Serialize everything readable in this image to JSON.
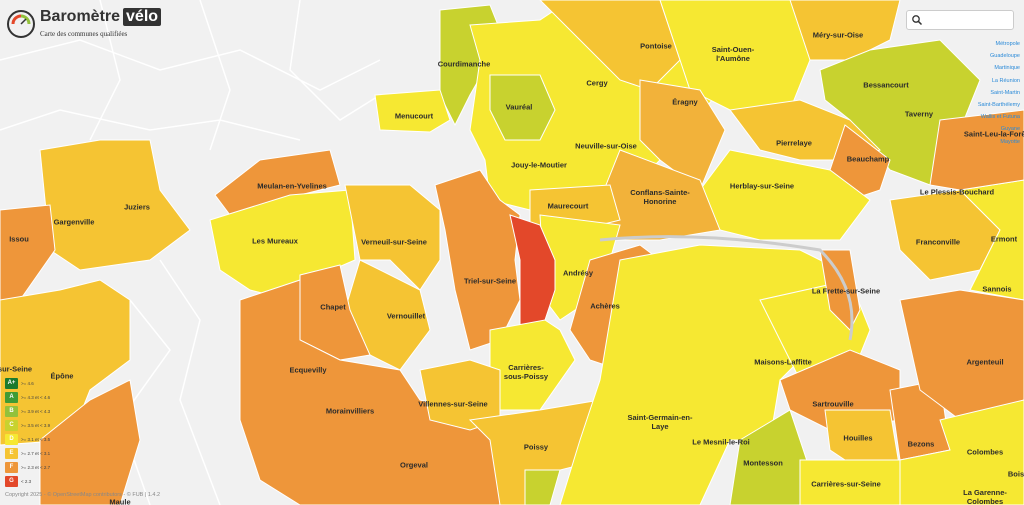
{
  "header": {
    "title": "Baromètre",
    "badge": "vélo",
    "subtitle": "Carte des communes qualifiées"
  },
  "communes": [
    "Courdimanche",
    "Cergy",
    "Pontoise",
    "Saint-Ouen-l'Aumône",
    "Méry-sur-Oise",
    "Bessancourt",
    "Taverny",
    "Saint-Leu-la-Forêt",
    "Menucourt",
    "Vauréal",
    "Neuville-sur-Oise",
    "Éragny",
    "Pierrelaye",
    "Beauchamp",
    "Jouy-le-Moutier",
    "Herblay-sur-Seine",
    "Le Plessis-Bouchard",
    "Conflans-Sainte-Honorine",
    "Maurecourt",
    "Meulan-en-Yvelines",
    "Gargenville",
    "Juziers",
    "Issou",
    "Les Mureaux",
    "Verneuil-sur-Seine",
    "Franconville",
    "Ermont",
    "Andrésy",
    "Triel-sur-Seine",
    "Sannois",
    "La Frette-sur-Seine",
    "Chapet",
    "Achères",
    "Vernouillet",
    "Argenteuil",
    "Maisons-Laffitte",
    "sur-Seine",
    "Épône",
    "Ecquevilly",
    "Carrières-sous-Poissy",
    "Sartrouville",
    "Villennes-sur-Seine",
    "Morainvilliers",
    "Saint-Germain-en-Laye",
    "Houilles",
    "Bezons",
    "Le Mesnil-le-Roi",
    "Poissy",
    "Colombes",
    "Montesson",
    "Orgeval",
    "Bois",
    "Carrières-sur-Seine",
    "La Garenne-Colombes",
    "Maule"
  ],
  "legend": [
    {
      "grade": "A+",
      "range": ">= 4.6",
      "color": "#1b7a2e"
    },
    {
      "grade": "A",
      "range": ">= 4.3 et < 4.6",
      "color": "#3f9b35"
    },
    {
      "grade": "B",
      "range": ">= 3.9 et < 4.3",
      "color": "#93c13b"
    },
    {
      "grade": "C",
      "range": ">= 3.5 et < 3.9",
      "color": "#c8d22f"
    },
    {
      "grade": "D",
      "range": ">= 3.1 et < 3.5",
      "color": "#f6e832"
    },
    {
      "grade": "E",
      "range": ">= 2.7 et < 3.1",
      "color": "#f5c433"
    },
    {
      "grade": "F",
      "range": ">= 2.3 et < 2.7",
      "color": "#ee963a"
    },
    {
      "grade": "G",
      "range": "< 2.3",
      "color": "#e3482a"
    }
  ],
  "territories": [
    "Métropole",
    "Guadeloupe",
    "Martinique",
    "La Réunion",
    "Saint-Martin",
    "Saint-Barthélemy",
    "Wallis et Futuna",
    "Guyane",
    "Mayotte"
  ],
  "attribution": "Copyright 2025 - © OpenStreetMap contributors - © FUB | 1.4.2"
}
